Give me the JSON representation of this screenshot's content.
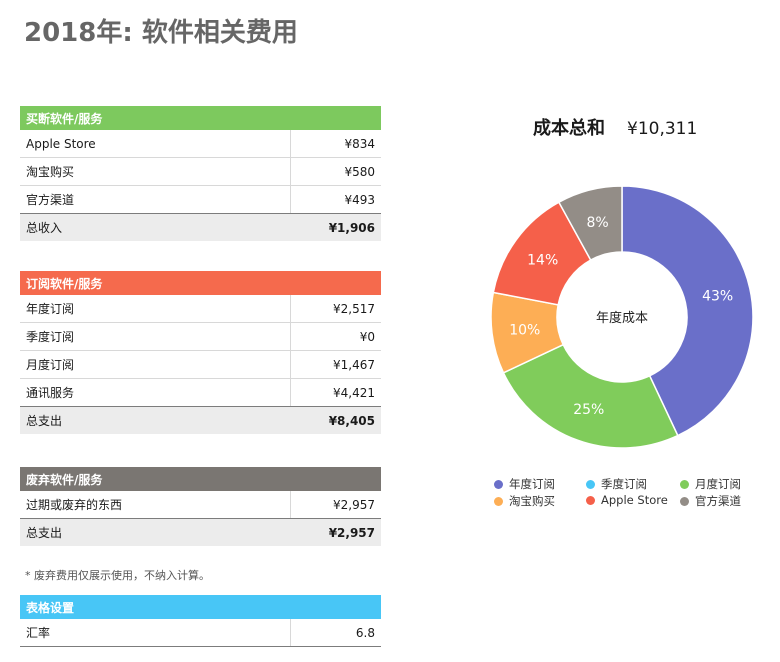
{
  "page": {
    "title": "2018年: 软件相关费用"
  },
  "tables": {
    "buyout": {
      "header": "买断软件/服务",
      "color": "#7dc95e",
      "rows": [
        {
          "label": "Apple Store",
          "value": "¥834"
        },
        {
          "label": "淘宝购买",
          "value": "¥580"
        },
        {
          "label": "官方渠道",
          "value": "¥493"
        }
      ],
      "total": {
        "label": "总收入",
        "value": "¥1,906"
      }
    },
    "subscription": {
      "header": "订阅软件/服务",
      "color": "#f56a4d",
      "rows": [
        {
          "label": "年度订阅",
          "value": "¥2,517"
        },
        {
          "label": "季度订阅",
          "value": "¥0"
        },
        {
          "label": "月度订阅",
          "value": "¥1,467"
        },
        {
          "label": "通讯服务",
          "value": "¥4,421"
        }
      ],
      "total": {
        "label": "总支出",
        "value": "¥8,405"
      }
    },
    "abandoned": {
      "header": "废弃软件/服务",
      "color": "#7a7672",
      "rows": [
        {
          "label": "过期或废弃的东西",
          "value": "¥2,957"
        }
      ],
      "total": {
        "label": "总支出",
        "value": "¥2,957"
      }
    },
    "settings": {
      "header": "表格设置",
      "color": "#48c6f6",
      "rows": [
        {
          "label": "汇率",
          "value": "6.8"
        }
      ]
    }
  },
  "footnote": "* 废弃费用仅展示使用，不纳入计算。",
  "chart_data": {
    "type": "pie",
    "title": "成本总和",
    "total_label": "¥10,311",
    "center_label": "年度成本",
    "series": [
      {
        "name": "年度订阅",
        "value": 43,
        "label": "43%",
        "color": "#6a6fc9"
      },
      {
        "name": "季度订阅",
        "value": 0,
        "label": "",
        "color": "#48c6f6"
      },
      {
        "name": "月度订阅",
        "value": 25,
        "label": "25%",
        "color": "#80cc5b"
      },
      {
        "name": "淘宝购买",
        "value": 10,
        "label": "10%",
        "color": "#fdae55"
      },
      {
        "name": "Apple Store",
        "value": 14,
        "label": "14%",
        "color": "#f5604a"
      },
      {
        "name": "官方渠道",
        "value": 8,
        "label": "8%",
        "color": "#938d87"
      }
    ],
    "legend_position": "bottom"
  }
}
